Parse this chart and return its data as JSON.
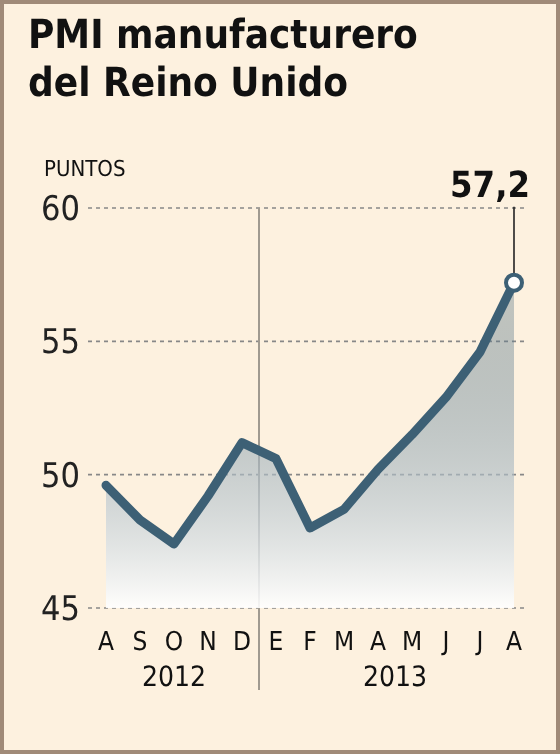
{
  "chart_data": {
    "type": "area",
    "title": "PMI manufacturero del Reino Unido",
    "ylabel": "PUNTOS",
    "categories": [
      "A",
      "S",
      "O",
      "N",
      "D",
      "E",
      "F",
      "M",
      "A",
      "M",
      "J",
      "J",
      "A"
    ],
    "series": [
      {
        "color": "#3d6075",
        "values": [
          49.6,
          48.3,
          47.4,
          49.2,
          51.2,
          50.6,
          48.0,
          48.7,
          50.2,
          51.5,
          52.9,
          54.6,
          57.2
        ],
        "value_labels": [
          null,
          null,
          null,
          null,
          null,
          null,
          null,
          null,
          null,
          null,
          null,
          null,
          "57,2"
        ]
      }
    ],
    "ylim": [
      45,
      60
    ],
    "yticks": [
      45,
      50,
      55,
      60
    ],
    "grid": "y",
    "ref_lines": [
      {
        "axis": "x",
        "value": "E",
        "color": "#a09a90"
      }
    ],
    "annotations": [
      "2012",
      "2013"
    ]
  }
}
